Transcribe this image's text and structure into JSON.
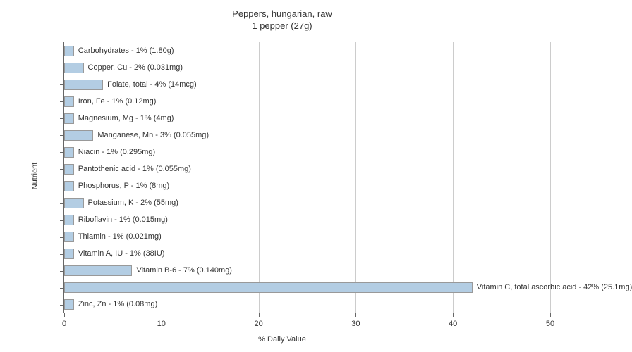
{
  "chart": {
    "type": "bar-horizontal",
    "title_line1": "Peppers, hungarian, raw",
    "title_line2": "1 pepper (27g)",
    "title_fontsize": 13,
    "xlabel": "% Daily Value",
    "ylabel": "Nutrient",
    "label_fontsize": 11,
    "xlim": [
      0,
      50
    ],
    "xtick_step": 10,
    "xticks": [
      0,
      10,
      20,
      30,
      40,
      50
    ],
    "background_color": "#ffffff",
    "grid_color": "#cccccc",
    "axis_color": "#666666",
    "bar_color": "#b3cde3",
    "bar_border_color": "#999999",
    "tick_label_fontsize": 11,
    "bars": [
      {
        "label": "Carbohydrates - 1% (1.80g)",
        "value": 1
      },
      {
        "label": "Copper, Cu - 2% (0.031mg)",
        "value": 2
      },
      {
        "label": "Folate, total - 4% (14mcg)",
        "value": 4
      },
      {
        "label": "Iron, Fe - 1% (0.12mg)",
        "value": 1
      },
      {
        "label": "Magnesium, Mg - 1% (4mg)",
        "value": 1
      },
      {
        "label": "Manganese, Mn - 3% (0.055mg)",
        "value": 3
      },
      {
        "label": "Niacin - 1% (0.295mg)",
        "value": 1
      },
      {
        "label": "Pantothenic acid - 1% (0.055mg)",
        "value": 1
      },
      {
        "label": "Phosphorus, P - 1% (8mg)",
        "value": 1
      },
      {
        "label": "Potassium, K - 2% (55mg)",
        "value": 2
      },
      {
        "label": "Riboflavin - 1% (0.015mg)",
        "value": 1
      },
      {
        "label": "Thiamin - 1% (0.021mg)",
        "value": 1
      },
      {
        "label": "Vitamin A, IU - 1% (38IU)",
        "value": 1
      },
      {
        "label": "Vitamin B-6 - 7% (0.140mg)",
        "value": 7
      },
      {
        "label": "Vitamin C, total ascorbic acid - 42% (25.1mg)",
        "value": 42
      },
      {
        "label": "Zinc, Zn - 1% (0.08mg)",
        "value": 1
      }
    ]
  }
}
